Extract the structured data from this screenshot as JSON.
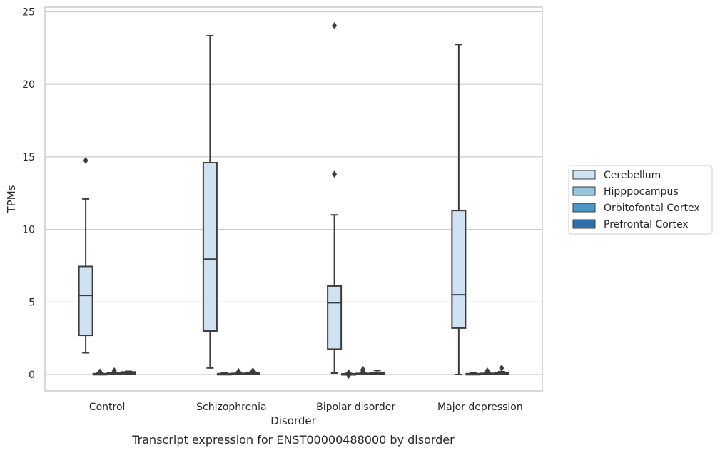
{
  "chart_data": {
    "type": "box",
    "title": "",
    "caption": "Transcript expression for ENST00000488000 by disorder",
    "xlabel": "Disorder",
    "ylabel": "TPMs",
    "ylim": [
      -1.2,
      25.4
    ],
    "yticks": [
      0,
      5,
      10,
      15,
      20,
      25
    ],
    "grid": "horizontal",
    "legend_placement": "right",
    "categories": [
      "Control",
      "Schizophrenia",
      "Bipolar disorder",
      "Major depression"
    ],
    "series": [
      {
        "name": "Cerebellum",
        "color": "#d0e1f2",
        "boxes": [
          {
            "whislo": 1.5,
            "q1": 2.7,
            "med": 5.45,
            "q3": 7.45,
            "whishi": 12.1,
            "fliers": [
              14.75
            ]
          },
          {
            "whislo": 0.45,
            "q1": 3.0,
            "med": 7.95,
            "q3": 14.6,
            "whishi": 23.35,
            "fliers": []
          },
          {
            "whislo": 0.1,
            "q1": 1.75,
            "med": 4.95,
            "q3": 6.1,
            "whishi": 11.0,
            "fliers": [
              13.8,
              24.05
            ]
          },
          {
            "whislo": 0.0,
            "q1": 3.2,
            "med": 5.5,
            "q3": 11.3,
            "whishi": 22.75,
            "fliers": []
          }
        ]
      },
      {
        "name": "Hipppocampus",
        "color": "#94c4df",
        "boxes": [
          {
            "whislo": 0.0,
            "q1": 0.01,
            "med": 0.03,
            "q3": 0.06,
            "whishi": 0.1,
            "fliers": [
              0.18
            ]
          },
          {
            "whislo": 0.0,
            "q1": 0.01,
            "med": 0.03,
            "q3": 0.06,
            "whishi": 0.1,
            "fliers": []
          },
          {
            "whislo": 0.0,
            "q1": 0.01,
            "med": 0.02,
            "q3": 0.05,
            "whishi": 0.08,
            "fliers": [
              0.12,
              -0.05
            ]
          },
          {
            "whislo": 0.0,
            "q1": 0.01,
            "med": 0.03,
            "q3": 0.06,
            "whishi": 0.1,
            "fliers": []
          }
        ]
      },
      {
        "name": "Orbitofontal Cortex",
        "color": "#4a98c9",
        "boxes": [
          {
            "whislo": 0.0,
            "q1": 0.02,
            "med": 0.05,
            "q3": 0.1,
            "whishi": 0.15,
            "fliers": [
              0.25
            ]
          },
          {
            "whislo": 0.0,
            "q1": 0.01,
            "med": 0.04,
            "q3": 0.08,
            "whishi": 0.13,
            "fliers": [
              0.2
            ]
          },
          {
            "whislo": 0.0,
            "q1": 0.01,
            "med": 0.04,
            "q3": 0.08,
            "whishi": 0.15,
            "fliers": [
              0.35,
              0.25
            ]
          },
          {
            "whislo": 0.0,
            "q1": 0.01,
            "med": 0.04,
            "q3": 0.08,
            "whishi": 0.13,
            "fliers": [
              0.25
            ]
          }
        ]
      },
      {
        "name": "Prefrontal Cortex",
        "color": "#2e6fa8",
        "boxes": [
          {
            "whislo": 0.0,
            "q1": 0.05,
            "med": 0.12,
            "q3": 0.18,
            "whishi": 0.22,
            "fliers": []
          },
          {
            "whislo": 0.0,
            "q1": 0.03,
            "med": 0.08,
            "q3": 0.13,
            "whishi": 0.18,
            "fliers": [
              0.25
            ]
          },
          {
            "whislo": 0.0,
            "q1": 0.03,
            "med": 0.08,
            "q3": 0.15,
            "whishi": 0.28,
            "fliers": []
          },
          {
            "whislo": 0.0,
            "q1": 0.03,
            "med": 0.08,
            "q3": 0.15,
            "whishi": 0.2,
            "fliers": [
              0.45
            ]
          }
        ]
      }
    ]
  }
}
